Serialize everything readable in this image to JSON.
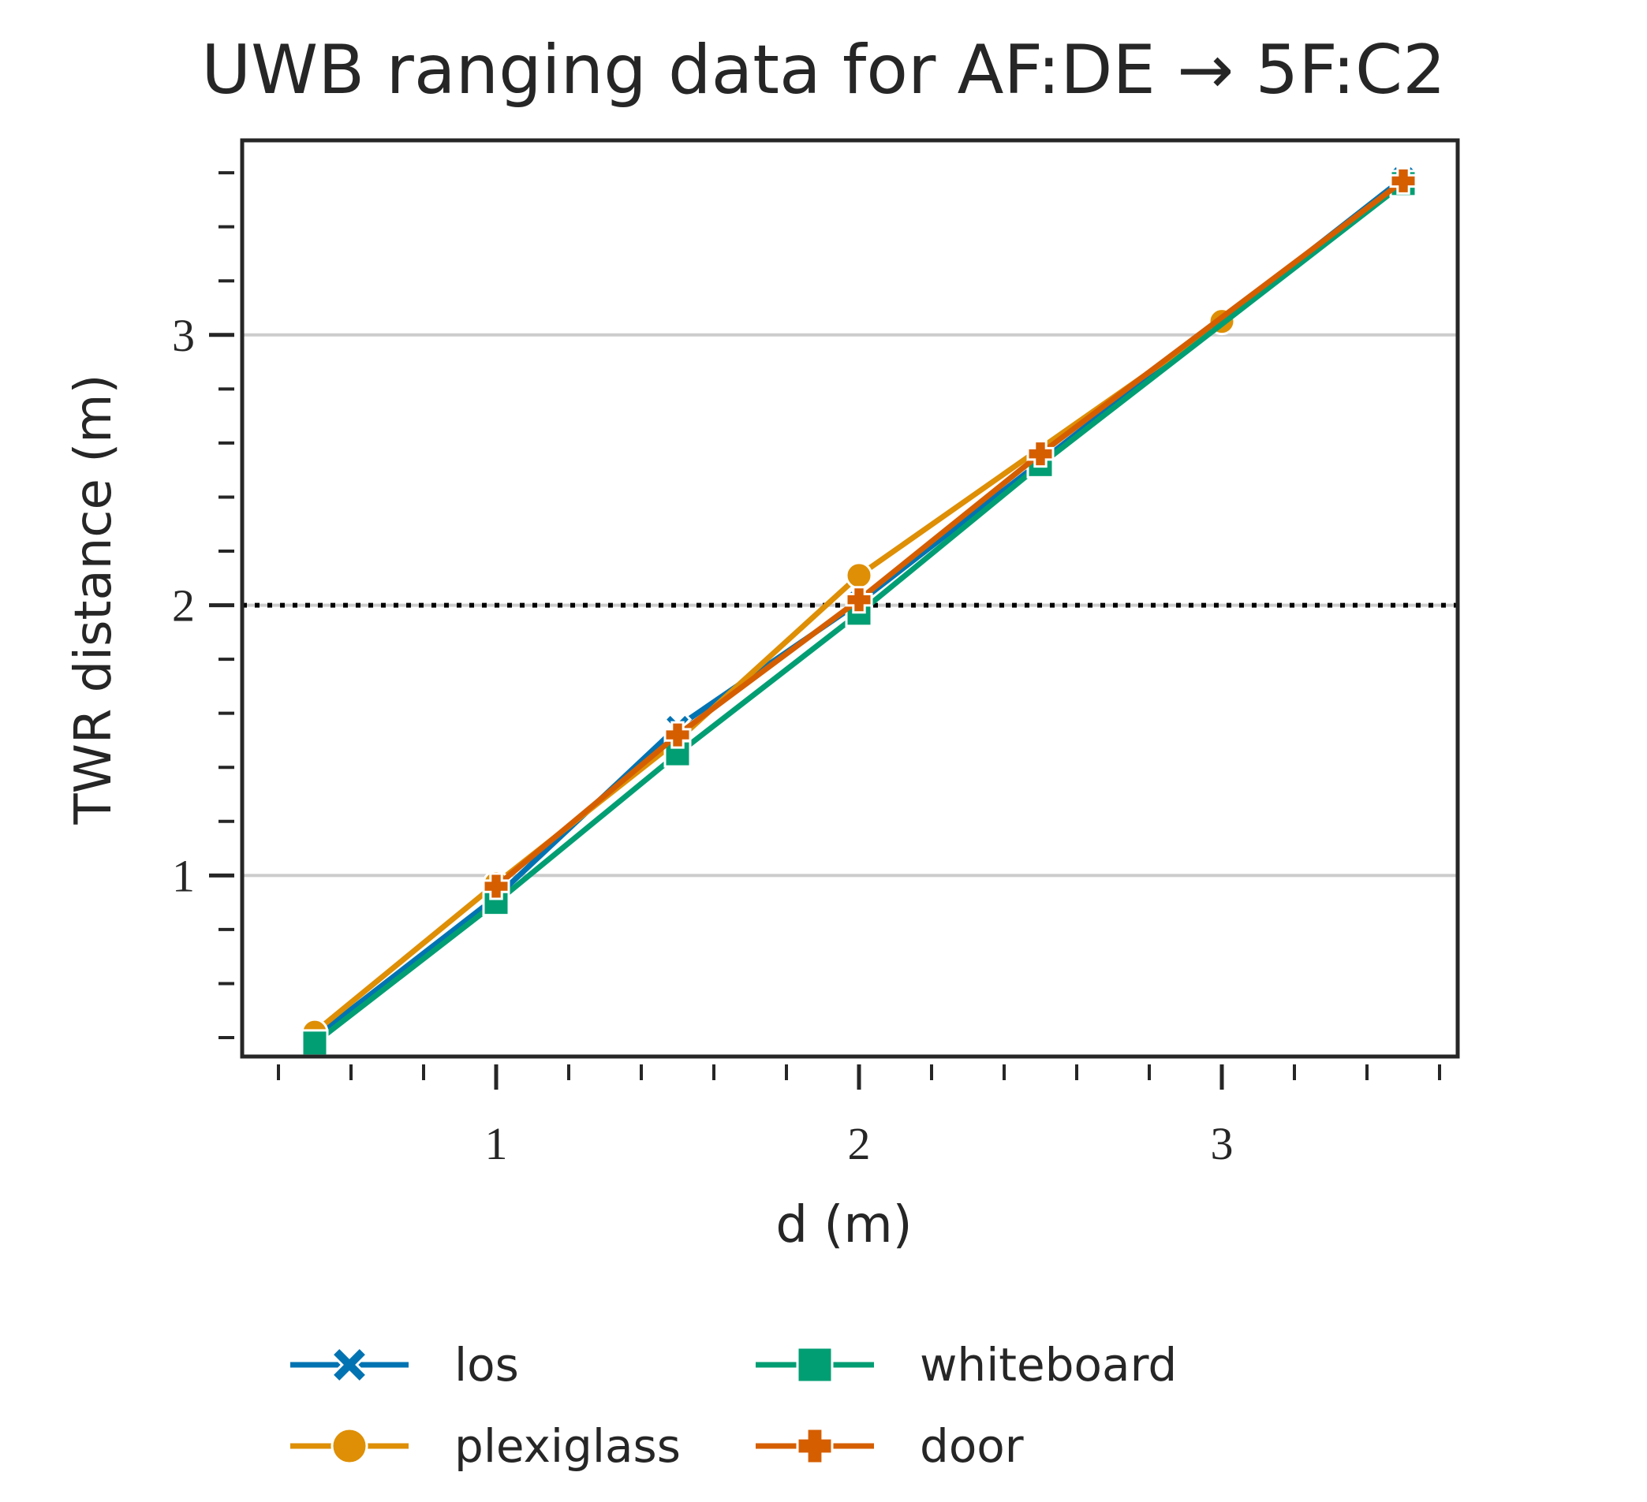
{
  "chart_data": {
    "type": "line",
    "title": "UWB ranging data for AF:DE → 5F:C2",
    "xlabel": "d (m)",
    "ylabel": "TWR distance (m)",
    "xlim": [
      0.3,
      3.65
    ],
    "ylim": [
      0.33,
      3.72
    ],
    "xticks": [
      {
        "value": 1,
        "label": "1"
      },
      {
        "value": 2,
        "label": "2"
      },
      {
        "value": 3,
        "label": "3"
      }
    ],
    "yticks": [
      {
        "value": 1,
        "label": "1"
      },
      {
        "value": 2,
        "label": "2"
      },
      {
        "value": 3,
        "label": "3"
      }
    ],
    "xminor_step": 0.2,
    "yminor_step": 0.2,
    "grid": "y-major",
    "reference_line": {
      "y": 2,
      "style": "dotted",
      "color": "#000000"
    },
    "legend_placement": "bottom",
    "series": [
      {
        "name": "los",
        "color": "#0173b2",
        "marker": "x",
        "x": [
          0.5,
          1.0,
          1.5,
          2.0,
          2.5,
          3.5
        ],
        "y": [
          0.4,
          0.92,
          1.55,
          2.01,
          2.53,
          3.58
        ]
      },
      {
        "name": "plexiglass",
        "color": "#de8f05",
        "marker": "circle",
        "x": [
          0.5,
          1.0,
          1.5,
          2.0,
          3.0
        ],
        "y": [
          0.42,
          0.97,
          1.5,
          2.11,
          3.05
        ]
      },
      {
        "name": "whiteboard",
        "color": "#029e73",
        "marker": "square",
        "x": [
          0.5,
          1.0,
          1.5,
          2.0,
          2.5,
          3.5
        ],
        "y": [
          0.38,
          0.9,
          1.45,
          1.97,
          2.52,
          3.56
        ]
      },
      {
        "name": "door",
        "color": "#d55e00",
        "marker": "plus",
        "x": [
          1.0,
          1.5,
          2.0,
          2.5,
          3.5
        ],
        "y": [
          0.96,
          1.52,
          2.02,
          2.56,
          3.57
        ]
      }
    ]
  }
}
